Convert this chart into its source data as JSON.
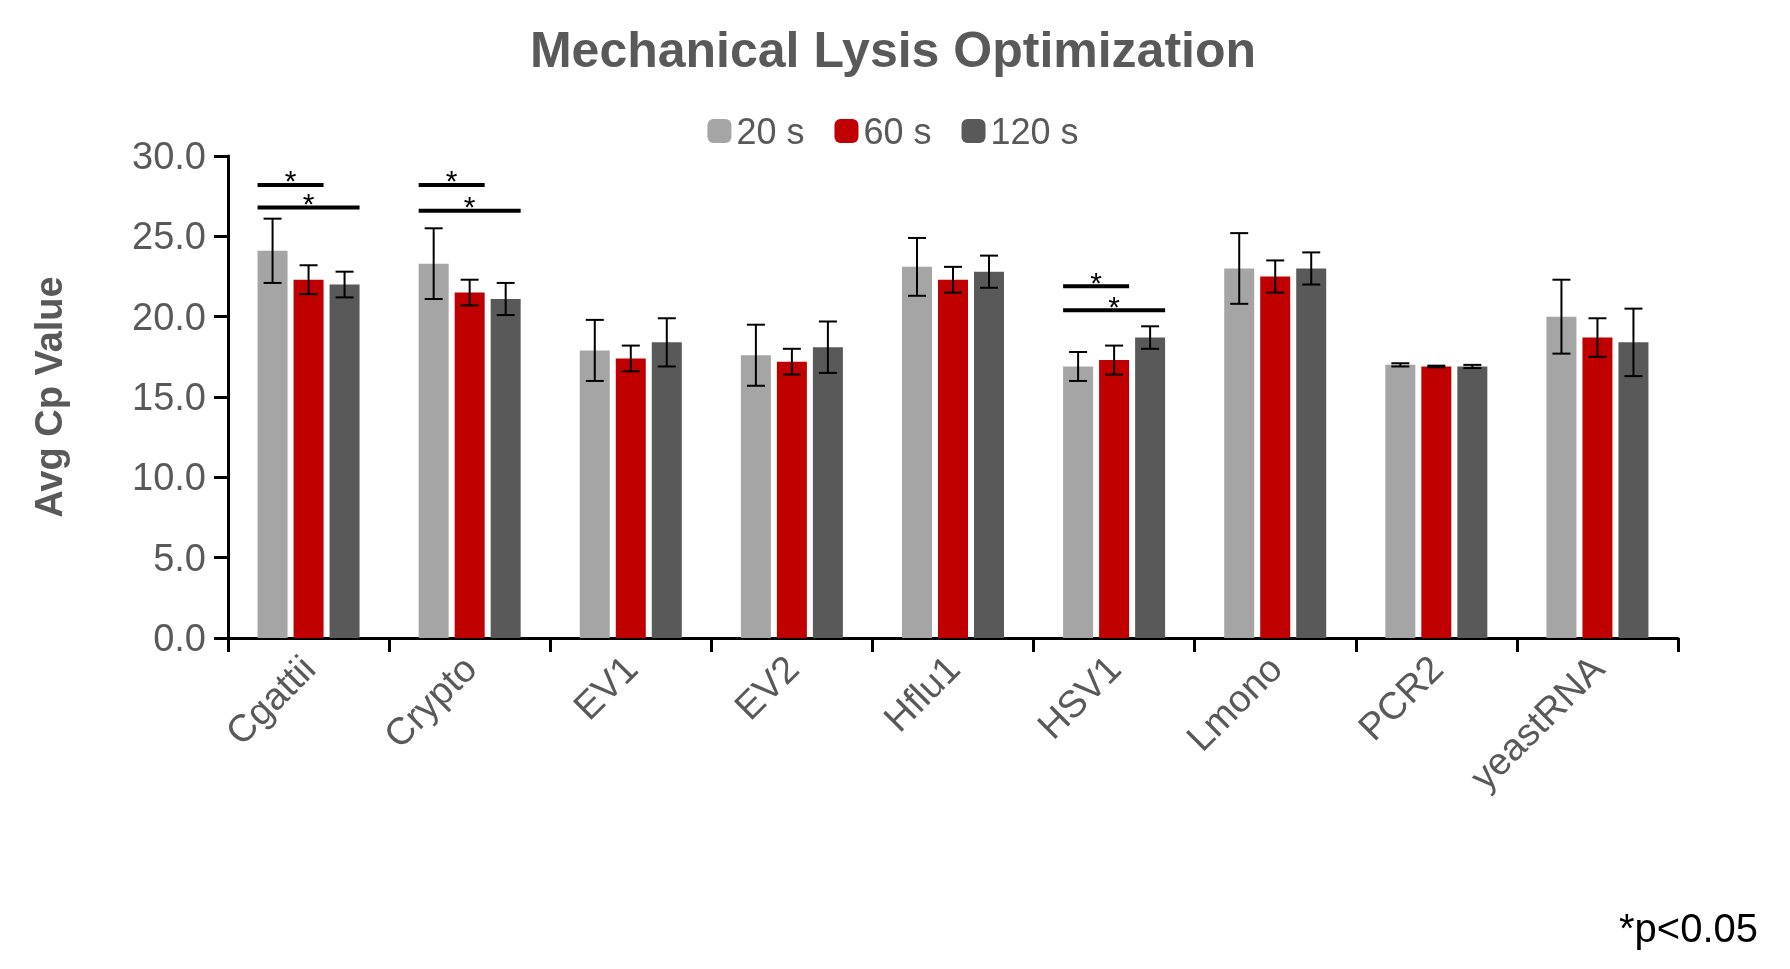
{
  "chart_data": {
    "type": "bar",
    "title": "Mechanical Lysis Optimization",
    "ylabel": "Avg Cp Value",
    "categories": [
      "Cgattii",
      "Crypto",
      "EV1",
      "EV2",
      "Hflu1",
      "HSV1",
      "Lmono",
      "PCR2",
      "yeastRNA"
    ],
    "series": [
      {
        "name": "20 s",
        "color": "#a5a5a5",
        "values": [
          24.1,
          23.3,
          17.9,
          17.6,
          23.1,
          16.9,
          23.0,
          17.0,
          20.0
        ],
        "errors": [
          2.0,
          2.2,
          1.9,
          1.9,
          1.8,
          0.9,
          2.2,
          0.1,
          2.3
        ]
      },
      {
        "name": "60 s",
        "color": "#c00000",
        "values": [
          22.3,
          21.5,
          17.4,
          17.2,
          22.3,
          17.3,
          22.5,
          16.9,
          18.7
        ],
        "errors": [
          0.9,
          0.8,
          0.8,
          0.8,
          0.8,
          0.9,
          1.0,
          0.05,
          1.2
        ]
      },
      {
        "name": "120 s",
        "color": "#595959",
        "values": [
          22.0,
          21.1,
          18.4,
          18.1,
          22.8,
          18.7,
          23.0,
          16.9,
          18.4
        ],
        "errors": [
          0.8,
          1.0,
          1.5,
          1.6,
          1.0,
          0.7,
          1.0,
          0.1,
          2.1
        ]
      }
    ],
    "ylim": [
      0,
      30
    ],
    "yticks": [
      {
        "value": 0,
        "label": "0.0"
      },
      {
        "value": 5,
        "label": "5.0"
      },
      {
        "value": 10,
        "label": "10.0"
      },
      {
        "value": 15,
        "label": "15.0"
      },
      {
        "value": 20,
        "label": "20.0"
      },
      {
        "value": 25,
        "label": "25.0"
      },
      {
        "value": 30,
        "label": "30.0"
      }
    ],
    "grid": false,
    "legend": "top",
    "annotations": [
      "*",
      "*",
      "*",
      "*",
      "*",
      "*",
      "*p<0.05"
    ]
  }
}
